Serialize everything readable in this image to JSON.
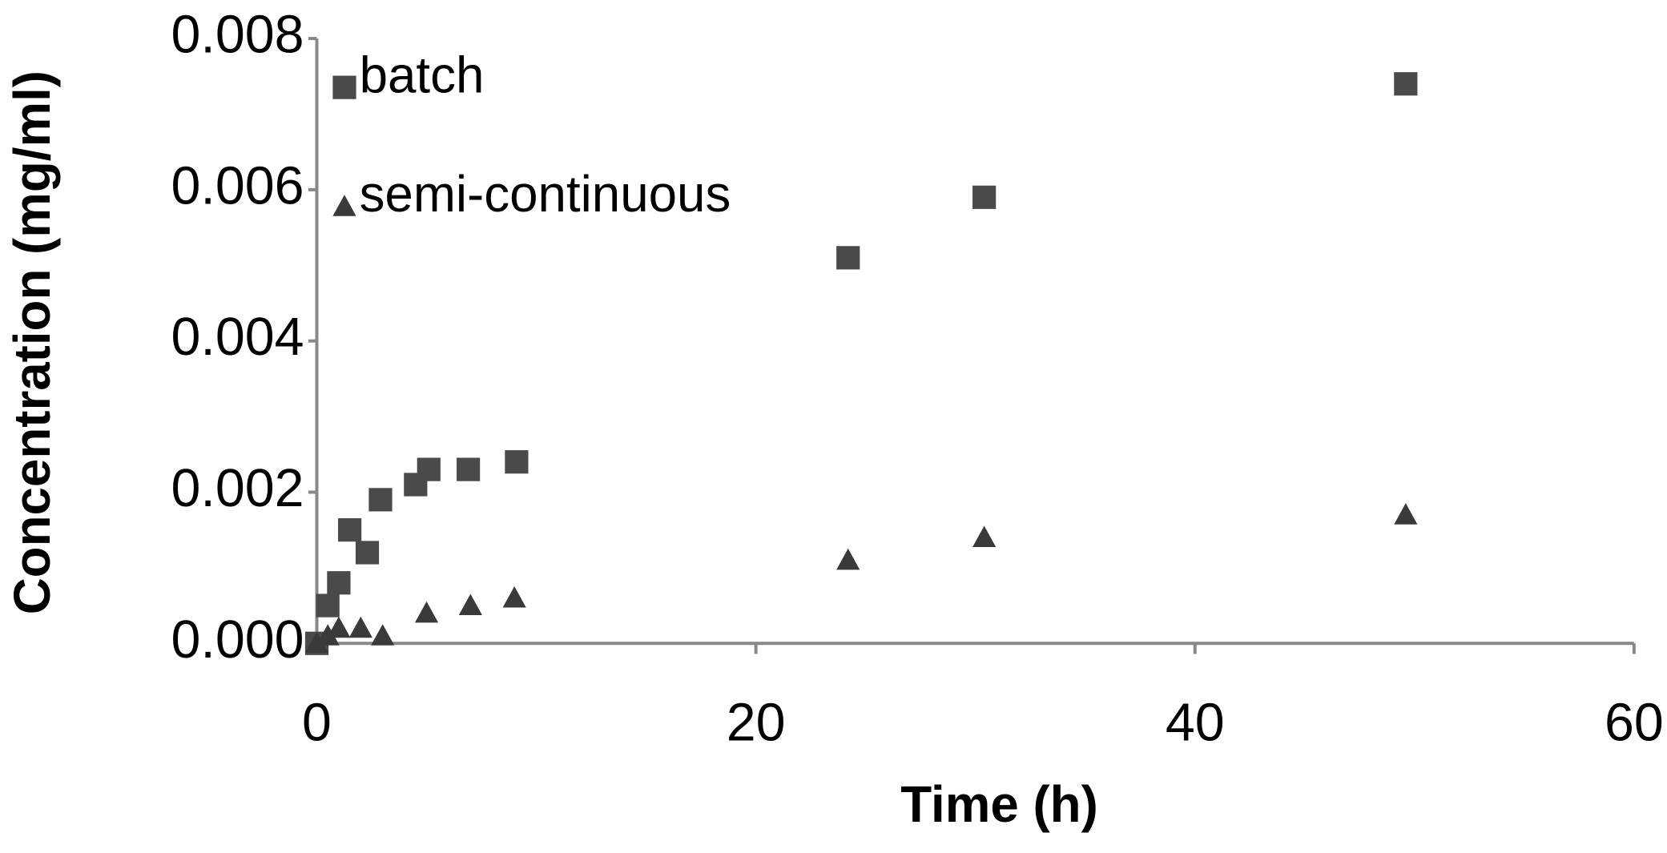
{
  "chart_data": {
    "type": "scatter",
    "x_label": "Time (h)",
    "y_label": "Concentration (mg/ml)",
    "xlim": [
      0,
      60
    ],
    "xticks": [
      0,
      20,
      40,
      60
    ],
    "ylim": [
      0,
      0.008
    ],
    "yticks": [
      {
        "value": 0,
        "label": "0.000"
      },
      0.002,
      0.004,
      0.006,
      0.008
    ],
    "legend": "top-left",
    "series": [
      {
        "name": "batch",
        "marker": "square",
        "color": "#4a4a4a",
        "x": [
          0,
          0.5,
          1,
          1.5,
          2.3,
          2.9,
          4.5,
          5.1,
          6.9,
          9.1,
          24.2,
          30.4,
          49.6
        ],
        "values": [
          0,
          0.0005,
          0.0008,
          0.0015,
          0.0012,
          0.0019,
          0.0021,
          0.0023,
          0.0023,
          0.0024,
          0.0051,
          0.0059,
          0.0074
        ]
      },
      {
        "name": "semi-continuous",
        "marker": "triangle",
        "color": "#3a3a3a",
        "x": [
          0,
          0.5,
          1,
          2,
          3,
          5,
          7,
          9,
          24.2,
          30.4,
          49.6
        ],
        "values": [
          0,
          0.0001,
          0.0002,
          0.0002,
          0.0001,
          0.0004,
          0.0005,
          0.0006,
          0.0011,
          0.0014,
          0.0017
        ]
      }
    ]
  }
}
